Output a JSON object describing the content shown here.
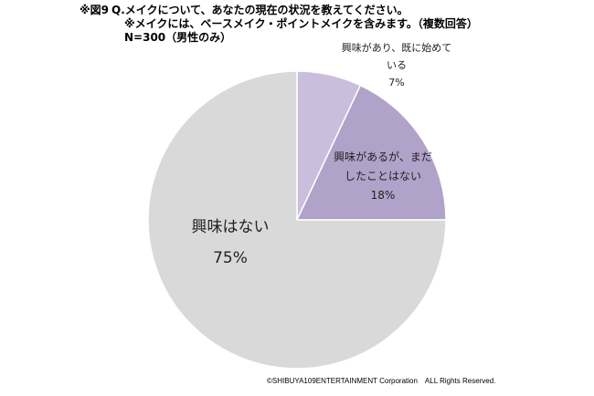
{
  "header": {
    "figure_label": "※図9",
    "question": "Q.メイクについて、あなたの現在の状況を教えてください。",
    "note": "※メイクには、ベースメイク・ポイントメイクを含みます。（複数回答）",
    "sample": "N=300（男性のみ）"
  },
  "chart_data": {
    "type": "pie",
    "title": "Q.メイクについて、あなたの現在の状況を教えてください。",
    "start_angle": "12 o'clock",
    "direction": "clockwise",
    "slices": [
      {
        "label_lines": [
          "興味があり、既に始めて",
          "いる"
        ],
        "value": 7,
        "value_label": "7%",
        "color": "#c9bfdc"
      },
      {
        "label_lines": [
          "興味があるが、まだ",
          "したことはない"
        ],
        "value": 18,
        "value_label": "18%",
        "color": "#b1a2c9"
      },
      {
        "label_lines": [
          "興味はない"
        ],
        "value": 75,
        "value_label": "75%",
        "color": "#d9d9d9"
      }
    ]
  },
  "footer": {
    "copyright": "©SHIBUYA109ENTERTAINMENT Corporation　ALL Rights Reserved."
  }
}
